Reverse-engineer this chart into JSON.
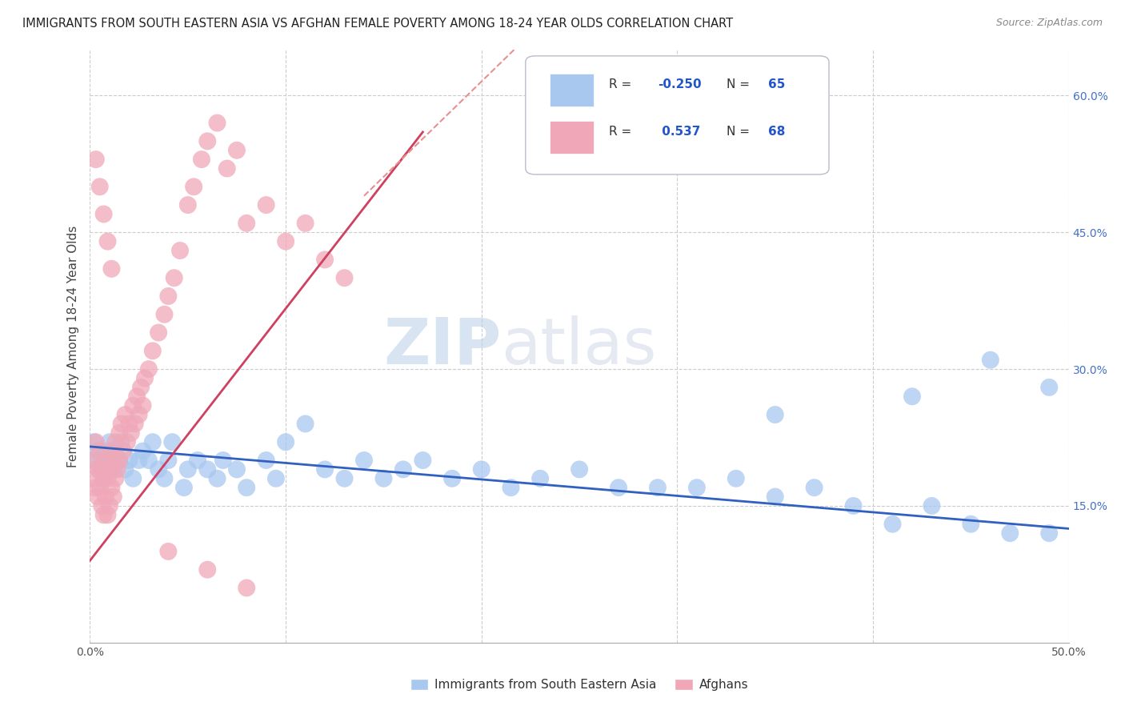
{
  "title": "IMMIGRANTS FROM SOUTH EASTERN ASIA VS AFGHAN FEMALE POVERTY AMONG 18-24 YEAR OLDS CORRELATION CHART",
  "source": "Source: ZipAtlas.com",
  "ylabel": "Female Poverty Among 18-24 Year Olds",
  "xlim": [
    0.0,
    0.5
  ],
  "ylim": [
    0.0,
    0.65
  ],
  "xticks": [
    0.0,
    0.1,
    0.2,
    0.3,
    0.4,
    0.5
  ],
  "xticklabels": [
    "0.0%",
    "",
    "",
    "",
    "",
    "50.0%"
  ],
  "yticks": [
    0.0,
    0.15,
    0.3,
    0.45,
    0.6
  ],
  "yticklabels": [
    "",
    "15.0%",
    "30.0%",
    "45.0%",
    "60.0%"
  ],
  "background_color": "#ffffff",
  "grid_color": "#cccccc",
  "watermark_left": "ZIP",
  "watermark_right": "atlas",
  "blue_color": "#a8c8f0",
  "pink_color": "#f0a8b8",
  "blue_line_color": "#3060c0",
  "pink_line_color": "#d04060",
  "pink_dash_color": "#e89090",
  "blue_r": "-0.250",
  "blue_n": "65",
  "pink_r": "0.537",
  "pink_n": "68",
  "blue_scatter_x": [
    0.002,
    0.003,
    0.004,
    0.005,
    0.006,
    0.007,
    0.008,
    0.009,
    0.01,
    0.01,
    0.011,
    0.012,
    0.013,
    0.015,
    0.016,
    0.018,
    0.02,
    0.022,
    0.025,
    0.027,
    0.03,
    0.032,
    0.035,
    0.038,
    0.04,
    0.042,
    0.048,
    0.05,
    0.055,
    0.06,
    0.065,
    0.068,
    0.075,
    0.08,
    0.09,
    0.095,
    0.1,
    0.11,
    0.12,
    0.13,
    0.14,
    0.15,
    0.16,
    0.17,
    0.185,
    0.2,
    0.215,
    0.23,
    0.25,
    0.27,
    0.29,
    0.31,
    0.33,
    0.35,
    0.37,
    0.39,
    0.41,
    0.43,
    0.45,
    0.47,
    0.49,
    0.35,
    0.42,
    0.46,
    0.49
  ],
  "blue_scatter_y": [
    0.22,
    0.2,
    0.21,
    0.19,
    0.2,
    0.18,
    0.21,
    0.19,
    0.2,
    0.22,
    0.2,
    0.19,
    0.21,
    0.2,
    0.22,
    0.19,
    0.2,
    0.18,
    0.2,
    0.21,
    0.2,
    0.22,
    0.19,
    0.18,
    0.2,
    0.22,
    0.17,
    0.19,
    0.2,
    0.19,
    0.18,
    0.2,
    0.19,
    0.17,
    0.2,
    0.18,
    0.22,
    0.24,
    0.19,
    0.18,
    0.2,
    0.18,
    0.19,
    0.2,
    0.18,
    0.19,
    0.17,
    0.18,
    0.19,
    0.17,
    0.17,
    0.17,
    0.18,
    0.16,
    0.17,
    0.15,
    0.13,
    0.15,
    0.13,
    0.12,
    0.12,
    0.25,
    0.27,
    0.31,
    0.28
  ],
  "pink_scatter_x": [
    0.001,
    0.002,
    0.003,
    0.003,
    0.004,
    0.004,
    0.005,
    0.005,
    0.006,
    0.006,
    0.007,
    0.007,
    0.008,
    0.008,
    0.009,
    0.009,
    0.01,
    0.01,
    0.011,
    0.011,
    0.012,
    0.012,
    0.013,
    0.013,
    0.014,
    0.015,
    0.015,
    0.016,
    0.017,
    0.018,
    0.019,
    0.02,
    0.021,
    0.022,
    0.023,
    0.024,
    0.025,
    0.026,
    0.027,
    0.028,
    0.03,
    0.032,
    0.035,
    0.038,
    0.04,
    0.043,
    0.046,
    0.05,
    0.053,
    0.057,
    0.06,
    0.065,
    0.07,
    0.075,
    0.08,
    0.09,
    0.1,
    0.11,
    0.12,
    0.13,
    0.04,
    0.06,
    0.08,
    0.003,
    0.005,
    0.007,
    0.009,
    0.011
  ],
  "pink_scatter_y": [
    0.2,
    0.18,
    0.22,
    0.17,
    0.19,
    0.16,
    0.21,
    0.17,
    0.19,
    0.15,
    0.18,
    0.14,
    0.2,
    0.16,
    0.18,
    0.14,
    0.19,
    0.15,
    0.21,
    0.17,
    0.2,
    0.16,
    0.22,
    0.18,
    0.19,
    0.23,
    0.2,
    0.24,
    0.21,
    0.25,
    0.22,
    0.24,
    0.23,
    0.26,
    0.24,
    0.27,
    0.25,
    0.28,
    0.26,
    0.29,
    0.3,
    0.32,
    0.34,
    0.36,
    0.38,
    0.4,
    0.43,
    0.48,
    0.5,
    0.53,
    0.55,
    0.57,
    0.52,
    0.54,
    0.46,
    0.48,
    0.44,
    0.46,
    0.42,
    0.4,
    0.1,
    0.08,
    0.06,
    0.53,
    0.5,
    0.47,
    0.44,
    0.41
  ],
  "blue_trend_x": [
    0.0,
    0.5
  ],
  "blue_trend_y": [
    0.215,
    0.125
  ],
  "pink_trend_x": [
    0.0,
    0.17
  ],
  "pink_trend_y": [
    0.09,
    0.56
  ]
}
